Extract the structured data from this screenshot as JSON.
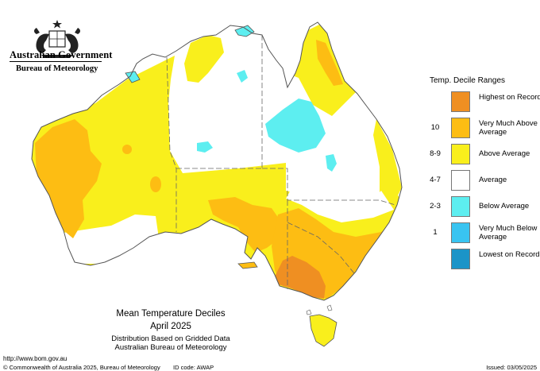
{
  "header": {
    "government": "Australian Government",
    "bureau": "Bureau of Meteorology"
  },
  "legend": {
    "title": "Temp. Decile Ranges",
    "items": [
      {
        "code": "",
        "label": "Highest on Record",
        "color": "#ef8f22"
      },
      {
        "code": "10",
        "label": "Very Much Above Average",
        "color": "#fdbd13"
      },
      {
        "code": "8-9",
        "label": "Above Average",
        "color": "#f9ef1c"
      },
      {
        "code": "4-7",
        "label": "Average",
        "color": "#ffffff"
      },
      {
        "code": "2-3",
        "label": "Below Average",
        "color": "#5deef0"
      },
      {
        "code": "1",
        "label": "Very Much Below Average",
        "color": "#39c4f1"
      },
      {
        "code": "",
        "label": "Lowest on Record",
        "color": "#1b94c8"
      }
    ]
  },
  "caption": {
    "title": "Mean Temperature Deciles",
    "period": "April 2025",
    "basis": "Distribution Based on Gridded Data",
    "source": "Australian Bureau of Meteorology"
  },
  "footer": {
    "url": "http://www.bom.gov.au",
    "copyright": "© Commonwealth of Australia 2025, Bureau of Meteorology",
    "id_code": "ID code: AWAP",
    "issued": "Issued: 03/05/2025"
  }
}
